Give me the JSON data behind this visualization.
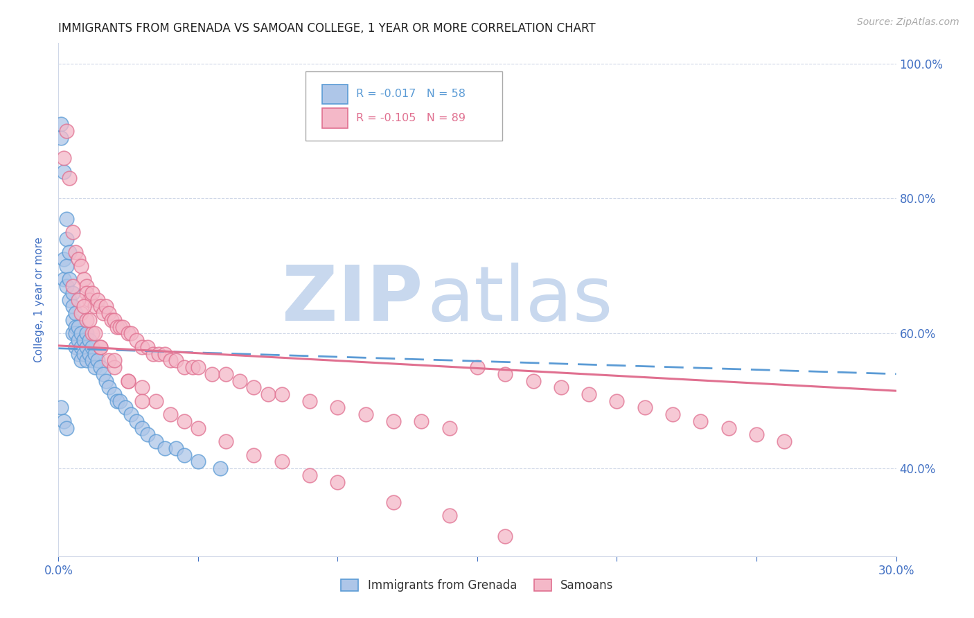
{
  "title": "IMMIGRANTS FROM GRENADA VS SAMOAN COLLEGE, 1 YEAR OR MORE CORRELATION CHART",
  "source": "Source: ZipAtlas.com",
  "ylabel": "College, 1 year or more",
  "xlim": [
    0.0,
    0.3
  ],
  "ylim": [
    0.27,
    1.03
  ],
  "color_grenada_fill": "#aec6e8",
  "color_grenada_edge": "#5b9bd5",
  "color_samoan_fill": "#f4b8c8",
  "color_samoan_edge": "#e07090",
  "color_trend_grenada": "#5b9bd5",
  "color_trend_samoan": "#e07090",
  "color_tick_label": "#4472c4",
  "color_ylabel": "#4472c4",
  "background_color": "#ffffff",
  "watermark_zip_color": "#c8d8ee",
  "watermark_atlas_color": "#c8d8ee",
  "grenada_x": [
    0.001,
    0.001,
    0.002,
    0.002,
    0.002,
    0.003,
    0.003,
    0.003,
    0.003,
    0.004,
    0.004,
    0.004,
    0.005,
    0.005,
    0.005,
    0.005,
    0.006,
    0.006,
    0.006,
    0.006,
    0.007,
    0.007,
    0.007,
    0.008,
    0.008,
    0.008,
    0.009,
    0.009,
    0.01,
    0.01,
    0.01,
    0.011,
    0.011,
    0.012,
    0.012,
    0.013,
    0.013,
    0.014,
    0.015,
    0.016,
    0.017,
    0.018,
    0.02,
    0.021,
    0.022,
    0.024,
    0.026,
    0.028,
    0.03,
    0.032,
    0.035,
    0.038,
    0.042,
    0.045,
    0.05,
    0.058,
    0.001,
    0.002,
    0.003
  ],
  "grenada_y": [
    0.91,
    0.89,
    0.84,
    0.71,
    0.68,
    0.77,
    0.74,
    0.7,
    0.67,
    0.72,
    0.68,
    0.65,
    0.66,
    0.64,
    0.62,
    0.6,
    0.63,
    0.61,
    0.6,
    0.58,
    0.61,
    0.59,
    0.57,
    0.6,
    0.58,
    0.56,
    0.59,
    0.57,
    0.6,
    0.58,
    0.56,
    0.59,
    0.57,
    0.58,
    0.56,
    0.57,
    0.55,
    0.56,
    0.55,
    0.54,
    0.53,
    0.52,
    0.51,
    0.5,
    0.5,
    0.49,
    0.48,
    0.47,
    0.46,
    0.45,
    0.44,
    0.43,
    0.43,
    0.42,
    0.41,
    0.4,
    0.49,
    0.47,
    0.46
  ],
  "samoan_x": [
    0.002,
    0.003,
    0.004,
    0.005,
    0.006,
    0.007,
    0.008,
    0.009,
    0.01,
    0.01,
    0.011,
    0.012,
    0.013,
    0.014,
    0.015,
    0.016,
    0.017,
    0.018,
    0.019,
    0.02,
    0.021,
    0.022,
    0.023,
    0.025,
    0.026,
    0.028,
    0.03,
    0.032,
    0.034,
    0.036,
    0.038,
    0.04,
    0.042,
    0.045,
    0.048,
    0.05,
    0.055,
    0.06,
    0.065,
    0.07,
    0.075,
    0.08,
    0.09,
    0.1,
    0.11,
    0.12,
    0.13,
    0.14,
    0.15,
    0.16,
    0.17,
    0.18,
    0.19,
    0.2,
    0.21,
    0.22,
    0.23,
    0.24,
    0.25,
    0.26,
    0.008,
    0.01,
    0.012,
    0.015,
    0.018,
    0.02,
    0.025,
    0.03,
    0.035,
    0.04,
    0.045,
    0.05,
    0.06,
    0.07,
    0.08,
    0.09,
    0.1,
    0.12,
    0.14,
    0.16,
    0.005,
    0.007,
    0.009,
    0.011,
    0.013,
    0.015,
    0.02,
    0.025,
    0.03
  ],
  "samoan_y": [
    0.86,
    0.9,
    0.83,
    0.75,
    0.72,
    0.71,
    0.7,
    0.68,
    0.67,
    0.66,
    0.65,
    0.66,
    0.64,
    0.65,
    0.64,
    0.63,
    0.64,
    0.63,
    0.62,
    0.62,
    0.61,
    0.61,
    0.61,
    0.6,
    0.6,
    0.59,
    0.58,
    0.58,
    0.57,
    0.57,
    0.57,
    0.56,
    0.56,
    0.55,
    0.55,
    0.55,
    0.54,
    0.54,
    0.53,
    0.52,
    0.51,
    0.51,
    0.5,
    0.49,
    0.48,
    0.47,
    0.47,
    0.46,
    0.55,
    0.54,
    0.53,
    0.52,
    0.51,
    0.5,
    0.49,
    0.48,
    0.47,
    0.46,
    0.45,
    0.44,
    0.63,
    0.62,
    0.6,
    0.58,
    0.56,
    0.55,
    0.53,
    0.52,
    0.5,
    0.48,
    0.47,
    0.46,
    0.44,
    0.42,
    0.41,
    0.39,
    0.38,
    0.35,
    0.33,
    0.3,
    0.67,
    0.65,
    0.64,
    0.62,
    0.6,
    0.58,
    0.56,
    0.53,
    0.5
  ],
  "trend_grenada_x0": 0.0,
  "trend_grenada_x1": 0.3,
  "trend_grenada_y0": 0.578,
  "trend_grenada_y1": 0.54,
  "trend_samoan_x0": 0.0,
  "trend_samoan_x1": 0.3,
  "trend_samoan_y0": 0.582,
  "trend_samoan_y1": 0.515
}
